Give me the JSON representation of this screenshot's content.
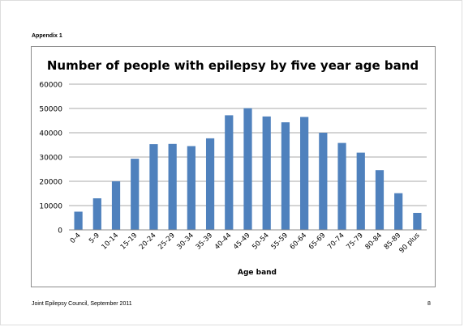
{
  "header": {
    "appendix": "Appendix 1"
  },
  "footer": {
    "left": "Joint Epilepsy Council, September 2011",
    "page_number": "8"
  },
  "chart_data": {
    "type": "bar",
    "title": "Number of people with epilepsy by five year age band",
    "xlabel": "Age band",
    "ylabel": "",
    "ylim": [
      0,
      60000
    ],
    "yticks": [
      0,
      10000,
      20000,
      30000,
      40000,
      50000,
      60000
    ],
    "grid": true,
    "bar_color": "#4f81bd",
    "categories": [
      "0-4",
      "5-9",
      "10-14",
      "15-19",
      "20-24",
      "25-29",
      "30-34",
      "35-39",
      "40-44",
      "45-49",
      "50-54",
      "55-59",
      "60-64",
      "65-69",
      "70-74",
      "75-79",
      "80-84",
      "85-89",
      "90 plus"
    ],
    "values": [
      7500,
      13000,
      20000,
      29300,
      35300,
      35400,
      34500,
      37700,
      47200,
      50100,
      46700,
      44300,
      46500,
      40000,
      35800,
      31800,
      24600,
      15100,
      7000
    ]
  }
}
